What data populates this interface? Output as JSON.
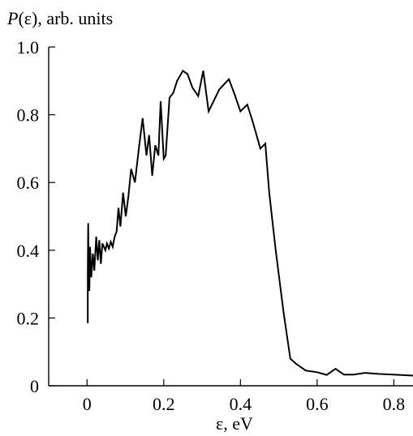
{
  "chart_data": {
    "type": "line",
    "ylabel_italic": "P",
    "ylabel_rest": "(ε), arb. units",
    "xlabel": "ε, eV",
    "xlim": [
      -0.1,
      0.85
    ],
    "ylim": [
      0,
      1.0
    ],
    "xticks": [
      0,
      0.2,
      0.4,
      0.6,
      0.8
    ],
    "xtick_labels": [
      "0",
      "0.2",
      "0.4",
      "0.6",
      "0.8"
    ],
    "yticks": [
      0,
      0.2,
      0.4,
      0.6,
      0.8,
      1.0
    ],
    "ytick_labels": [
      "0",
      "0.2",
      "0.4",
      "0.6",
      "0.8",
      "1.0"
    ],
    "grid": false,
    "legend": false,
    "series": [
      {
        "color": "#000000",
        "x": [
          0.002,
          0.002,
          0.003,
          0.004,
          0.006,
          0.008,
          0.011,
          0.015,
          0.019,
          0.024,
          0.028,
          0.032,
          0.036,
          0.04,
          0.044,
          0.048,
          0.052,
          0.057,
          0.062,
          0.067,
          0.072,
          0.077,
          0.082,
          0.087,
          0.094,
          0.101,
          0.108,
          0.115,
          0.125,
          0.135,
          0.145,
          0.155,
          0.162,
          0.17,
          0.178,
          0.186,
          0.192,
          0.2,
          0.205,
          0.215,
          0.225,
          0.235,
          0.25,
          0.262,
          0.275,
          0.29,
          0.303,
          0.317,
          0.33,
          0.345,
          0.37,
          0.385,
          0.4,
          0.418,
          0.432,
          0.452,
          0.465,
          0.475,
          0.492,
          0.512,
          0.53,
          0.545,
          0.57,
          0.6,
          0.625,
          0.648,
          0.67,
          0.695,
          0.725,
          0.76,
          0.8,
          0.85
        ],
        "y": [
          0.185,
          0.34,
          0.48,
          0.35,
          0.28,
          0.41,
          0.32,
          0.39,
          0.34,
          0.44,
          0.37,
          0.43,
          0.36,
          0.42,
          0.41,
          0.4,
          0.42,
          0.405,
          0.425,
          0.41,
          0.44,
          0.455,
          0.525,
          0.47,
          0.57,
          0.5,
          0.56,
          0.64,
          0.6,
          0.7,
          0.79,
          0.68,
          0.74,
          0.62,
          0.71,
          0.68,
          0.84,
          0.67,
          0.68,
          0.85,
          0.865,
          0.9,
          0.93,
          0.92,
          0.88,
          0.855,
          0.93,
          0.81,
          0.84,
          0.875,
          0.905,
          0.86,
          0.81,
          0.83,
          0.78,
          0.7,
          0.715,
          0.57,
          0.4,
          0.22,
          0.08,
          0.065,
          0.045,
          0.04,
          0.032,
          0.05,
          0.033,
          0.033,
          0.038,
          0.035,
          0.033,
          0.03
        ]
      }
    ]
  }
}
